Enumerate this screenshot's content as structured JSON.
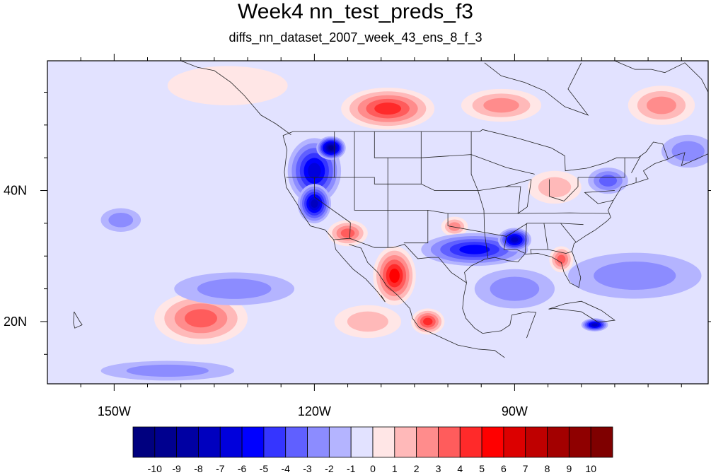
{
  "title": "Week4 nn_test_preds_f3",
  "subtitle": "diffs_nn_dataset_2007_week_43_ens_8_f_3",
  "x_axis": {
    "ticks": [
      {
        "lon": -150,
        "label": "150W"
      },
      {
        "lon": -120,
        "label": "120W"
      },
      {
        "lon": -90,
        "label": "90W"
      }
    ],
    "minor_lons": [
      -155,
      -145,
      -140,
      -135,
      -130,
      -125,
      -115,
      -110,
      -105,
      -100,
      -95,
      -85,
      -80,
      -75,
      -70,
      -65,
      -60
    ]
  },
  "y_axis": {
    "ticks": [
      {
        "lat": 40,
        "label": "40N"
      },
      {
        "lat": 20,
        "label": "20N"
      }
    ],
    "minor_lats": [
      15,
      25,
      30,
      35,
      45,
      50,
      55
    ]
  },
  "colorbar": {
    "labels": [
      "-10",
      "-9",
      "-8",
      "-7",
      "-6",
      "-5",
      "-4",
      "-3",
      "-2",
      "-1",
      "0",
      "1",
      "2",
      "3",
      "4",
      "5",
      "6",
      "7",
      "8",
      "9",
      "10"
    ],
    "colors": [
      "#00007f",
      "#00008f",
      "#0000a3",
      "#0000bf",
      "#0000dc",
      "#0000ff",
      "#3535ff",
      "#6060ff",
      "#8c8cff",
      "#b4b4ff",
      "#e2e2ff",
      "#ffe6e6",
      "#ffb9b9",
      "#ff8c8c",
      "#ff5c5c",
      "#ff2a2a",
      "#ff0000",
      "#dc0000",
      "#bf0000",
      "#a30000",
      "#8f0000",
      "#7f0000"
    ]
  },
  "chart_data": {
    "type": "heatmap",
    "title": "Week4 nn_test_preds_f3",
    "subtitle": "diffs_nn_dataset_2007_week_43_ens_8_f_3",
    "projection": "cylindrical-equidistant",
    "lon_range": [
      -160,
      -61
    ],
    "lat_range": [
      10.5,
      59.8
    ],
    "field_background_level": 10,
    "contour_levels": [
      -10,
      -9,
      -8,
      -7,
      -6,
      -5,
      -4,
      -3,
      -2,
      -1,
      0,
      1,
      2,
      3,
      4,
      5,
      6,
      7,
      8,
      9,
      10
    ],
    "anomaly_regions": [
      {
        "name": "north_central_canada_positive",
        "center": [
          -109,
          52.5
        ],
        "radius": [
          7,
          3.2
        ],
        "peak_level": 15
      },
      {
        "name": "hudson_bay_positive",
        "center": [
          -92,
          53
        ],
        "radius": [
          6,
          2.5
        ],
        "peak_level": 13
      },
      {
        "name": "labrador_positive",
        "center": [
          -68,
          53
        ],
        "radius": [
          5,
          3
        ],
        "peak_level": 13
      },
      {
        "name": "eastern_atlantic_negative",
        "center": [
          -64,
          46
        ],
        "radius": [
          4,
          2.5
        ],
        "peak_level": 8
      },
      {
        "name": "pacific_northwest_negative",
        "center": [
          -120,
          43
        ],
        "radius": [
          4,
          5
        ],
        "peak_level": 4
      },
      {
        "name": "washington_core_negative",
        "center": [
          -117.5,
          46.5
        ],
        "radius": [
          2.2,
          1.8
        ],
        "peak_level": 1
      },
      {
        "name": "california_sierra_negative",
        "center": [
          -120,
          38
        ],
        "radius": [
          2.5,
          3
        ],
        "peak_level": 3
      },
      {
        "name": "southwest_positive",
        "center": [
          -115,
          33.5
        ],
        "radius": [
          3,
          2
        ],
        "peak_level": 14
      },
      {
        "name": "sierra_madre_positive",
        "center": [
          -108,
          27
        ],
        "radius": [
          3.2,
          4.5
        ],
        "peak_level": 16
      },
      {
        "name": "southern_mexico_positive",
        "center": [
          -103,
          20
        ],
        "radius": [
          2.5,
          2
        ],
        "peak_level": 15
      },
      {
        "name": "texas_positive",
        "center": [
          -99,
          34.5
        ],
        "radius": [
          2,
          1.5
        ],
        "peak_level": 13
      },
      {
        "name": "gulf_coast_negative",
        "center": [
          -96,
          31
        ],
        "radius": [
          8,
          2.5
        ],
        "peak_level": 5
      },
      {
        "name": "mississippi_core_negative",
        "center": [
          -90,
          32.5
        ],
        "radius": [
          2.5,
          1.8
        ],
        "peak_level": 3
      },
      {
        "name": "florida_positive",
        "center": [
          -83,
          29.5
        ],
        "radius": [
          1.8,
          2
        ],
        "peak_level": 14
      },
      {
        "name": "great_lakes_positive",
        "center": [
          -84,
          40.5
        ],
        "radius": [
          4,
          2.5
        ],
        "peak_level": 12
      },
      {
        "name": "northeast_negative",
        "center": [
          -76,
          41.5
        ],
        "radius": [
          3,
          2
        ],
        "peak_level": 7
      },
      {
        "name": "gulf_of_mexico_negative",
        "center": [
          -90,
          25
        ],
        "radius": [
          6,
          3
        ],
        "peak_level": 8
      },
      {
        "name": "subtropical_pacific_positive",
        "center": [
          -137,
          20.5
        ],
        "radius": [
          7,
          4
        ],
        "peak_level": 14
      },
      {
        "name": "subtropical_pacific_ring_negative",
        "center": [
          -132,
          25
        ],
        "radius": [
          9,
          2.5
        ],
        "peak_level": 8
      },
      {
        "name": "tropical_pacific_positive",
        "center": [
          -112,
          20
        ],
        "radius": [
          5,
          2.5
        ],
        "peak_level": 12
      },
      {
        "name": "eastern_pacific_negative",
        "center": [
          -149,
          35.5
        ],
        "radius": [
          3,
          1.8
        ],
        "peak_level": 8
      },
      {
        "name": "atlantic_subtropical_negative",
        "center": [
          -72,
          27
        ],
        "radius": [
          10,
          3.5
        ],
        "peak_level": 8
      },
      {
        "name": "caribbean_negative",
        "center": [
          -78,
          19.5
        ],
        "radius": [
          2,
          1
        ],
        "peak_level": 3
      },
      {
        "name": "tropical_pacific_negative_band",
        "center": [
          -142,
          12.5
        ],
        "radius": [
          10,
          1.5
        ],
        "peak_level": 8
      },
      {
        "name": "gulf_of_alaska_positive",
        "center": [
          -133,
          56
        ],
        "radius": [
          9,
          3
        ],
        "peak_level": 11
      }
    ]
  }
}
